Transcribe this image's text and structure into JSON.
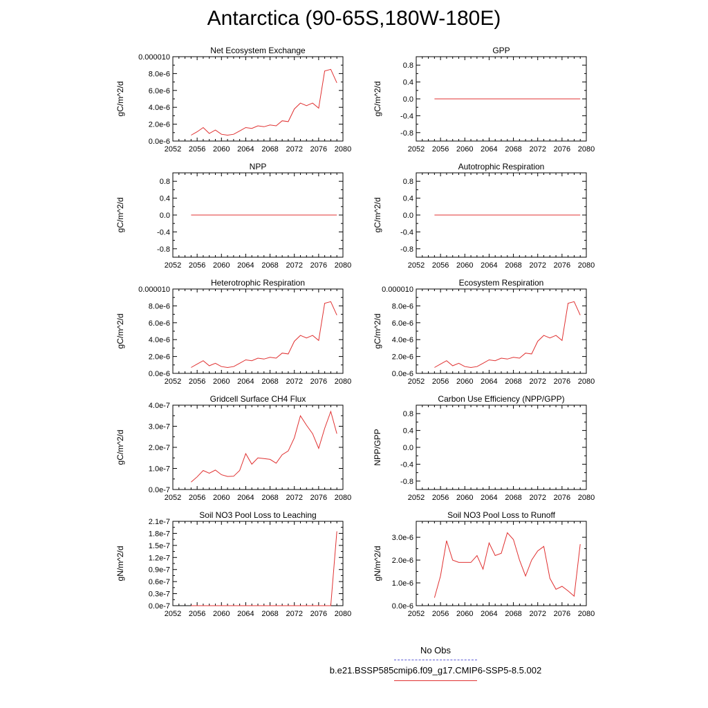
{
  "page": {
    "title": "Antarctica (90-65S,180W-180E)"
  },
  "legend": {
    "entries": [
      {
        "label": "No Obs",
        "color": "#5b5bd6",
        "style": "dashed"
      },
      {
        "label": "b.e21.BSSP585cmip6.f09_g17.CMIP6-SSP5-8.5.002",
        "color": "#e03030",
        "style": "solid"
      }
    ]
  },
  "chart_data": [
    {
      "type": "line",
      "title": "Net Ecosystem Exchange",
      "ylabel": "gC/m^2/d",
      "xlim": [
        2052,
        2080
      ],
      "ylim": [
        0,
        1e-05
      ],
      "xticks": [
        "2052",
        "2056",
        "2060",
        "2064",
        "2068",
        "2072",
        "2076",
        "2080"
      ],
      "yticks": [
        {
          "v": 0,
          "l": "0.0e-6"
        },
        {
          "v": 2e-06,
          "l": "2.0e-6"
        },
        {
          "v": 4e-06,
          "l": "4.0e-6"
        },
        {
          "v": 6e-06,
          "l": "6.0e-6"
        },
        {
          "v": 8e-06,
          "l": "8.0e-6"
        },
        {
          "v": 1e-05,
          "l": "0.000010"
        }
      ],
      "series": [
        {
          "color": "#e03030",
          "x": [
            2055,
            2056,
            2057,
            2058,
            2059,
            2060,
            2061,
            2062,
            2063,
            2064,
            2065,
            2066,
            2067,
            2068,
            2069,
            2070,
            2071,
            2072,
            2073,
            2074,
            2075,
            2076,
            2077,
            2078,
            2079
          ],
          "y": [
            7e-07,
            1.1e-06,
            1.6e-06,
            9e-07,
            1.3e-06,
            8e-07,
            7e-07,
            8e-07,
            1.2e-06,
            1.6e-06,
            1.5e-06,
            1.8e-06,
            1.7e-06,
            1.9e-06,
            1.8e-06,
            2.4e-06,
            2.3e-06,
            3.8e-06,
            4.5e-06,
            4.2e-06,
            4.5e-06,
            3.9e-06,
            8.3e-06,
            8.5e-06,
            6.9e-06
          ]
        }
      ]
    },
    {
      "type": "line",
      "title": "GPP",
      "ylabel": "gC/m^2/d",
      "xlim": [
        2052,
        2080
      ],
      "ylim": [
        -1,
        1
      ],
      "xticks": [
        "2052",
        "2056",
        "2060",
        "2064",
        "2068",
        "2072",
        "2076",
        "2080"
      ],
      "yticks": [
        {
          "v": -0.8,
          "l": "-0.8"
        },
        {
          "v": -0.4,
          "l": "-0.4"
        },
        {
          "v": 0,
          "l": "0.0"
        },
        {
          "v": 0.4,
          "l": "0.4"
        },
        {
          "v": 0.8,
          "l": "0.8"
        }
      ],
      "series": [
        {
          "color": "#e03030",
          "x": [
            2055,
            2079
          ],
          "y": [
            0,
            0
          ]
        }
      ]
    },
    {
      "type": "line",
      "title": "NPP",
      "ylabel": "gC/m^2/d",
      "xlim": [
        2052,
        2080
      ],
      "ylim": [
        -1,
        1
      ],
      "xticks": [
        "2052",
        "2056",
        "2060",
        "2064",
        "2068",
        "2072",
        "2076",
        "2080"
      ],
      "yticks": [
        {
          "v": -0.8,
          "l": "-0.8"
        },
        {
          "v": -0.4,
          "l": "-0.4"
        },
        {
          "v": 0,
          "l": "0.0"
        },
        {
          "v": 0.4,
          "l": "0.4"
        },
        {
          "v": 0.8,
          "l": "0.8"
        }
      ],
      "series": [
        {
          "color": "#e03030",
          "x": [
            2055,
            2079
          ],
          "y": [
            0,
            0
          ]
        }
      ]
    },
    {
      "type": "line",
      "title": "Autotrophic Respiration",
      "ylabel": "gC/m^2/d",
      "xlim": [
        2052,
        2080
      ],
      "ylim": [
        -1,
        1
      ],
      "xticks": [
        "2052",
        "2056",
        "2060",
        "2064",
        "2068",
        "2072",
        "2076",
        "2080"
      ],
      "yticks": [
        {
          "v": -0.8,
          "l": "-0.8"
        },
        {
          "v": -0.4,
          "l": "-0.4"
        },
        {
          "v": 0,
          "l": "0.0"
        },
        {
          "v": 0.4,
          "l": "0.4"
        },
        {
          "v": 0.8,
          "l": "0.8"
        }
      ],
      "series": [
        {
          "color": "#e03030",
          "x": [
            2055,
            2079
          ],
          "y": [
            0,
            0
          ]
        }
      ]
    },
    {
      "type": "line",
      "title": "Heterotrophic Respiration",
      "ylabel": "gC/m^2/d",
      "xlim": [
        2052,
        2080
      ],
      "ylim": [
        0,
        1e-05
      ],
      "xticks": [
        "2052",
        "2056",
        "2060",
        "2064",
        "2068",
        "2072",
        "2076",
        "2080"
      ],
      "yticks": [
        {
          "v": 0,
          "l": "0.0e-6"
        },
        {
          "v": 2e-06,
          "l": "2.0e-6"
        },
        {
          "v": 4e-06,
          "l": "4.0e-6"
        },
        {
          "v": 6e-06,
          "l": "6.0e-6"
        },
        {
          "v": 8e-06,
          "l": "8.0e-6"
        },
        {
          "v": 1e-05,
          "l": "0.000010"
        }
      ],
      "series": [
        {
          "color": "#e03030",
          "x": [
            2055,
            2056,
            2057,
            2058,
            2059,
            2060,
            2061,
            2062,
            2063,
            2064,
            2065,
            2066,
            2067,
            2068,
            2069,
            2070,
            2071,
            2072,
            2073,
            2074,
            2075,
            2076,
            2077,
            2078,
            2079
          ],
          "y": [
            7e-07,
            1.1e-06,
            1.5e-06,
            9e-07,
            1.2e-06,
            8e-07,
            7e-07,
            8e-07,
            1.2e-06,
            1.6e-06,
            1.5e-06,
            1.8e-06,
            1.7e-06,
            1.9e-06,
            1.8e-06,
            2.4e-06,
            2.3e-06,
            3.8e-06,
            4.5e-06,
            4.2e-06,
            4.5e-06,
            3.9e-06,
            8.3e-06,
            8.5e-06,
            6.9e-06
          ]
        }
      ]
    },
    {
      "type": "line",
      "title": "Ecosystem Respiration",
      "ylabel": "gC/m^2/d",
      "xlim": [
        2052,
        2080
      ],
      "ylim": [
        0,
        1e-05
      ],
      "xticks": [
        "2052",
        "2056",
        "2060",
        "2064",
        "2068",
        "2072",
        "2076",
        "2080"
      ],
      "yticks": [
        {
          "v": 0,
          "l": "0.0e-6"
        },
        {
          "v": 2e-06,
          "l": "2.0e-6"
        },
        {
          "v": 4e-06,
          "l": "4.0e-6"
        },
        {
          "v": 6e-06,
          "l": "6.0e-6"
        },
        {
          "v": 8e-06,
          "l": "8.0e-6"
        },
        {
          "v": 1e-05,
          "l": "0.000010"
        }
      ],
      "series": [
        {
          "color": "#e03030",
          "x": [
            2055,
            2056,
            2057,
            2058,
            2059,
            2060,
            2061,
            2062,
            2063,
            2064,
            2065,
            2066,
            2067,
            2068,
            2069,
            2070,
            2071,
            2072,
            2073,
            2074,
            2075,
            2076,
            2077,
            2078,
            2079
          ],
          "y": [
            7e-07,
            1.1e-06,
            1.5e-06,
            9e-07,
            1.2e-06,
            8e-07,
            7e-07,
            8e-07,
            1.2e-06,
            1.6e-06,
            1.5e-06,
            1.8e-06,
            1.7e-06,
            1.9e-06,
            1.8e-06,
            2.4e-06,
            2.3e-06,
            3.8e-06,
            4.5e-06,
            4.2e-06,
            4.5e-06,
            3.9e-06,
            8.3e-06,
            8.5e-06,
            6.9e-06
          ]
        }
      ]
    },
    {
      "type": "line",
      "title": "Gridcell Surface CH4 Flux",
      "ylabel": "gC/m^2/d",
      "xlim": [
        2052,
        2080
      ],
      "ylim": [
        0,
        4e-07
      ],
      "xticks": [
        "2052",
        "2056",
        "2060",
        "2064",
        "2068",
        "2072",
        "2076",
        "2080"
      ],
      "yticks": [
        {
          "v": 0,
          "l": "0.0e-7"
        },
        {
          "v": 1e-07,
          "l": "1.0e-7"
        },
        {
          "v": 2e-07,
          "l": "2.0e-7"
        },
        {
          "v": 3e-07,
          "l": "3.0e-7"
        },
        {
          "v": 4e-07,
          "l": "4.0e-7"
        }
      ],
      "series": [
        {
          "color": "#e03030",
          "x": [
            2055,
            2056,
            2057,
            2058,
            2059,
            2060,
            2061,
            2062,
            2063,
            2064,
            2065,
            2066,
            2067,
            2068,
            2069,
            2070,
            2071,
            2072,
            2073,
            2074,
            2075,
            2076,
            2077,
            2078,
            2079
          ],
          "y": [
            3.5e-08,
            6e-08,
            9e-08,
            7.7e-08,
            9.2e-08,
            7e-08,
            6.2e-08,
            6.3e-08,
            9e-08,
            1.7e-07,
            1.2e-07,
            1.5e-07,
            1.47e-07,
            1.43e-07,
            1.25e-07,
            1.65e-07,
            1.83e-07,
            2.45e-07,
            3.5e-07,
            3.05e-07,
            2.65e-07,
            1.95e-07,
            2.9e-07,
            3.7e-07,
            2.65e-07
          ]
        }
      ]
    },
    {
      "type": "line",
      "title": "Carbon Use Efficiency (NPP/GPP)",
      "ylabel": "NPP/GPP",
      "xlim": [
        2052,
        2080
      ],
      "ylim": [
        -1,
        1
      ],
      "xticks": [
        "2052",
        "2056",
        "2060",
        "2064",
        "2068",
        "2072",
        "2076",
        "2080"
      ],
      "yticks": [
        {
          "v": -0.8,
          "l": "-0.8"
        },
        {
          "v": -0.4,
          "l": "-0.4"
        },
        {
          "v": 0,
          "l": "0.0"
        },
        {
          "v": 0.4,
          "l": "0.4"
        },
        {
          "v": 0.8,
          "l": "0.8"
        }
      ],
      "series": []
    },
    {
      "type": "line",
      "title": "Soil NO3 Pool Loss to Leaching",
      "ylabel": "gN/m^2/d",
      "xlim": [
        2052,
        2080
      ],
      "ylim": [
        0,
        2.1e-07
      ],
      "xticks": [
        "2052",
        "2056",
        "2060",
        "2064",
        "2068",
        "2072",
        "2076",
        "2080"
      ],
      "yticks": [
        {
          "v": 0,
          "l": "0.0e-7"
        },
        {
          "v": 3e-08,
          "l": "0.3e-7"
        },
        {
          "v": 6e-08,
          "l": "0.6e-7"
        },
        {
          "v": 9e-08,
          "l": "0.9e-7"
        },
        {
          "v": 1.2e-07,
          "l": "1.2e-7"
        },
        {
          "v": 1.5e-07,
          "l": "1.5e-7"
        },
        {
          "v": 1.8e-07,
          "l": "1.8e-7"
        },
        {
          "v": 2.1e-07,
          "l": "2.1e-7"
        }
      ],
      "series": [
        {
          "color": "#e03030",
          "x": [
            2055,
            2056,
            2057,
            2058,
            2059,
            2060,
            2061,
            2062,
            2063,
            2064,
            2065,
            2066,
            2067,
            2068,
            2069,
            2070,
            2071,
            2072,
            2073,
            2074,
            2075,
            2076,
            2077,
            2078,
            2079
          ],
          "y": [
            0,
            0,
            0,
            0,
            0,
            0,
            0,
            0,
            0,
            0,
            0,
            0,
            0,
            0,
            0,
            0,
            0,
            0,
            0,
            0,
            0,
            0,
            0,
            0,
            1.85e-07
          ]
        }
      ]
    },
    {
      "type": "line",
      "title": "Soil NO3 Pool Loss to Runoff",
      "ylabel": "gN/m^2/d",
      "xlim": [
        2052,
        2080
      ],
      "ylim": [
        0,
        3.7e-06
      ],
      "xticks": [
        "2052",
        "2056",
        "2060",
        "2064",
        "2068",
        "2072",
        "2076",
        "2080"
      ],
      "yticks": [
        {
          "v": 0,
          "l": "0.0e-6"
        },
        {
          "v": 1e-06,
          "l": "1.0e-6"
        },
        {
          "v": 2e-06,
          "l": "2.0e-6"
        },
        {
          "v": 3e-06,
          "l": "3.0e-6"
        }
      ],
      "series": [
        {
          "color": "#e03030",
          "x": [
            2055,
            2056,
            2057,
            2058,
            2059,
            2060,
            2061,
            2062,
            2063,
            2064,
            2065,
            2066,
            2067,
            2068,
            2069,
            2070,
            2071,
            2072,
            2073,
            2074,
            2075,
            2076,
            2077,
            2078,
            2079
          ],
          "y": [
            3.5e-07,
            1.3e-06,
            2.85e-06,
            2e-06,
            1.9e-06,
            1.9e-06,
            1.9e-06,
            2.2e-06,
            1.6e-06,
            2.75e-06,
            2.2e-06,
            2.3e-06,
            3.2e-06,
            2.9e-06,
            2e-06,
            1.3e-06,
            2e-06,
            2.4e-06,
            2.6e-06,
            1.2e-06,
            7.2e-07,
            8.5e-07,
            6.5e-07,
            4.2e-07,
            2.7e-06
          ]
        }
      ]
    }
  ]
}
